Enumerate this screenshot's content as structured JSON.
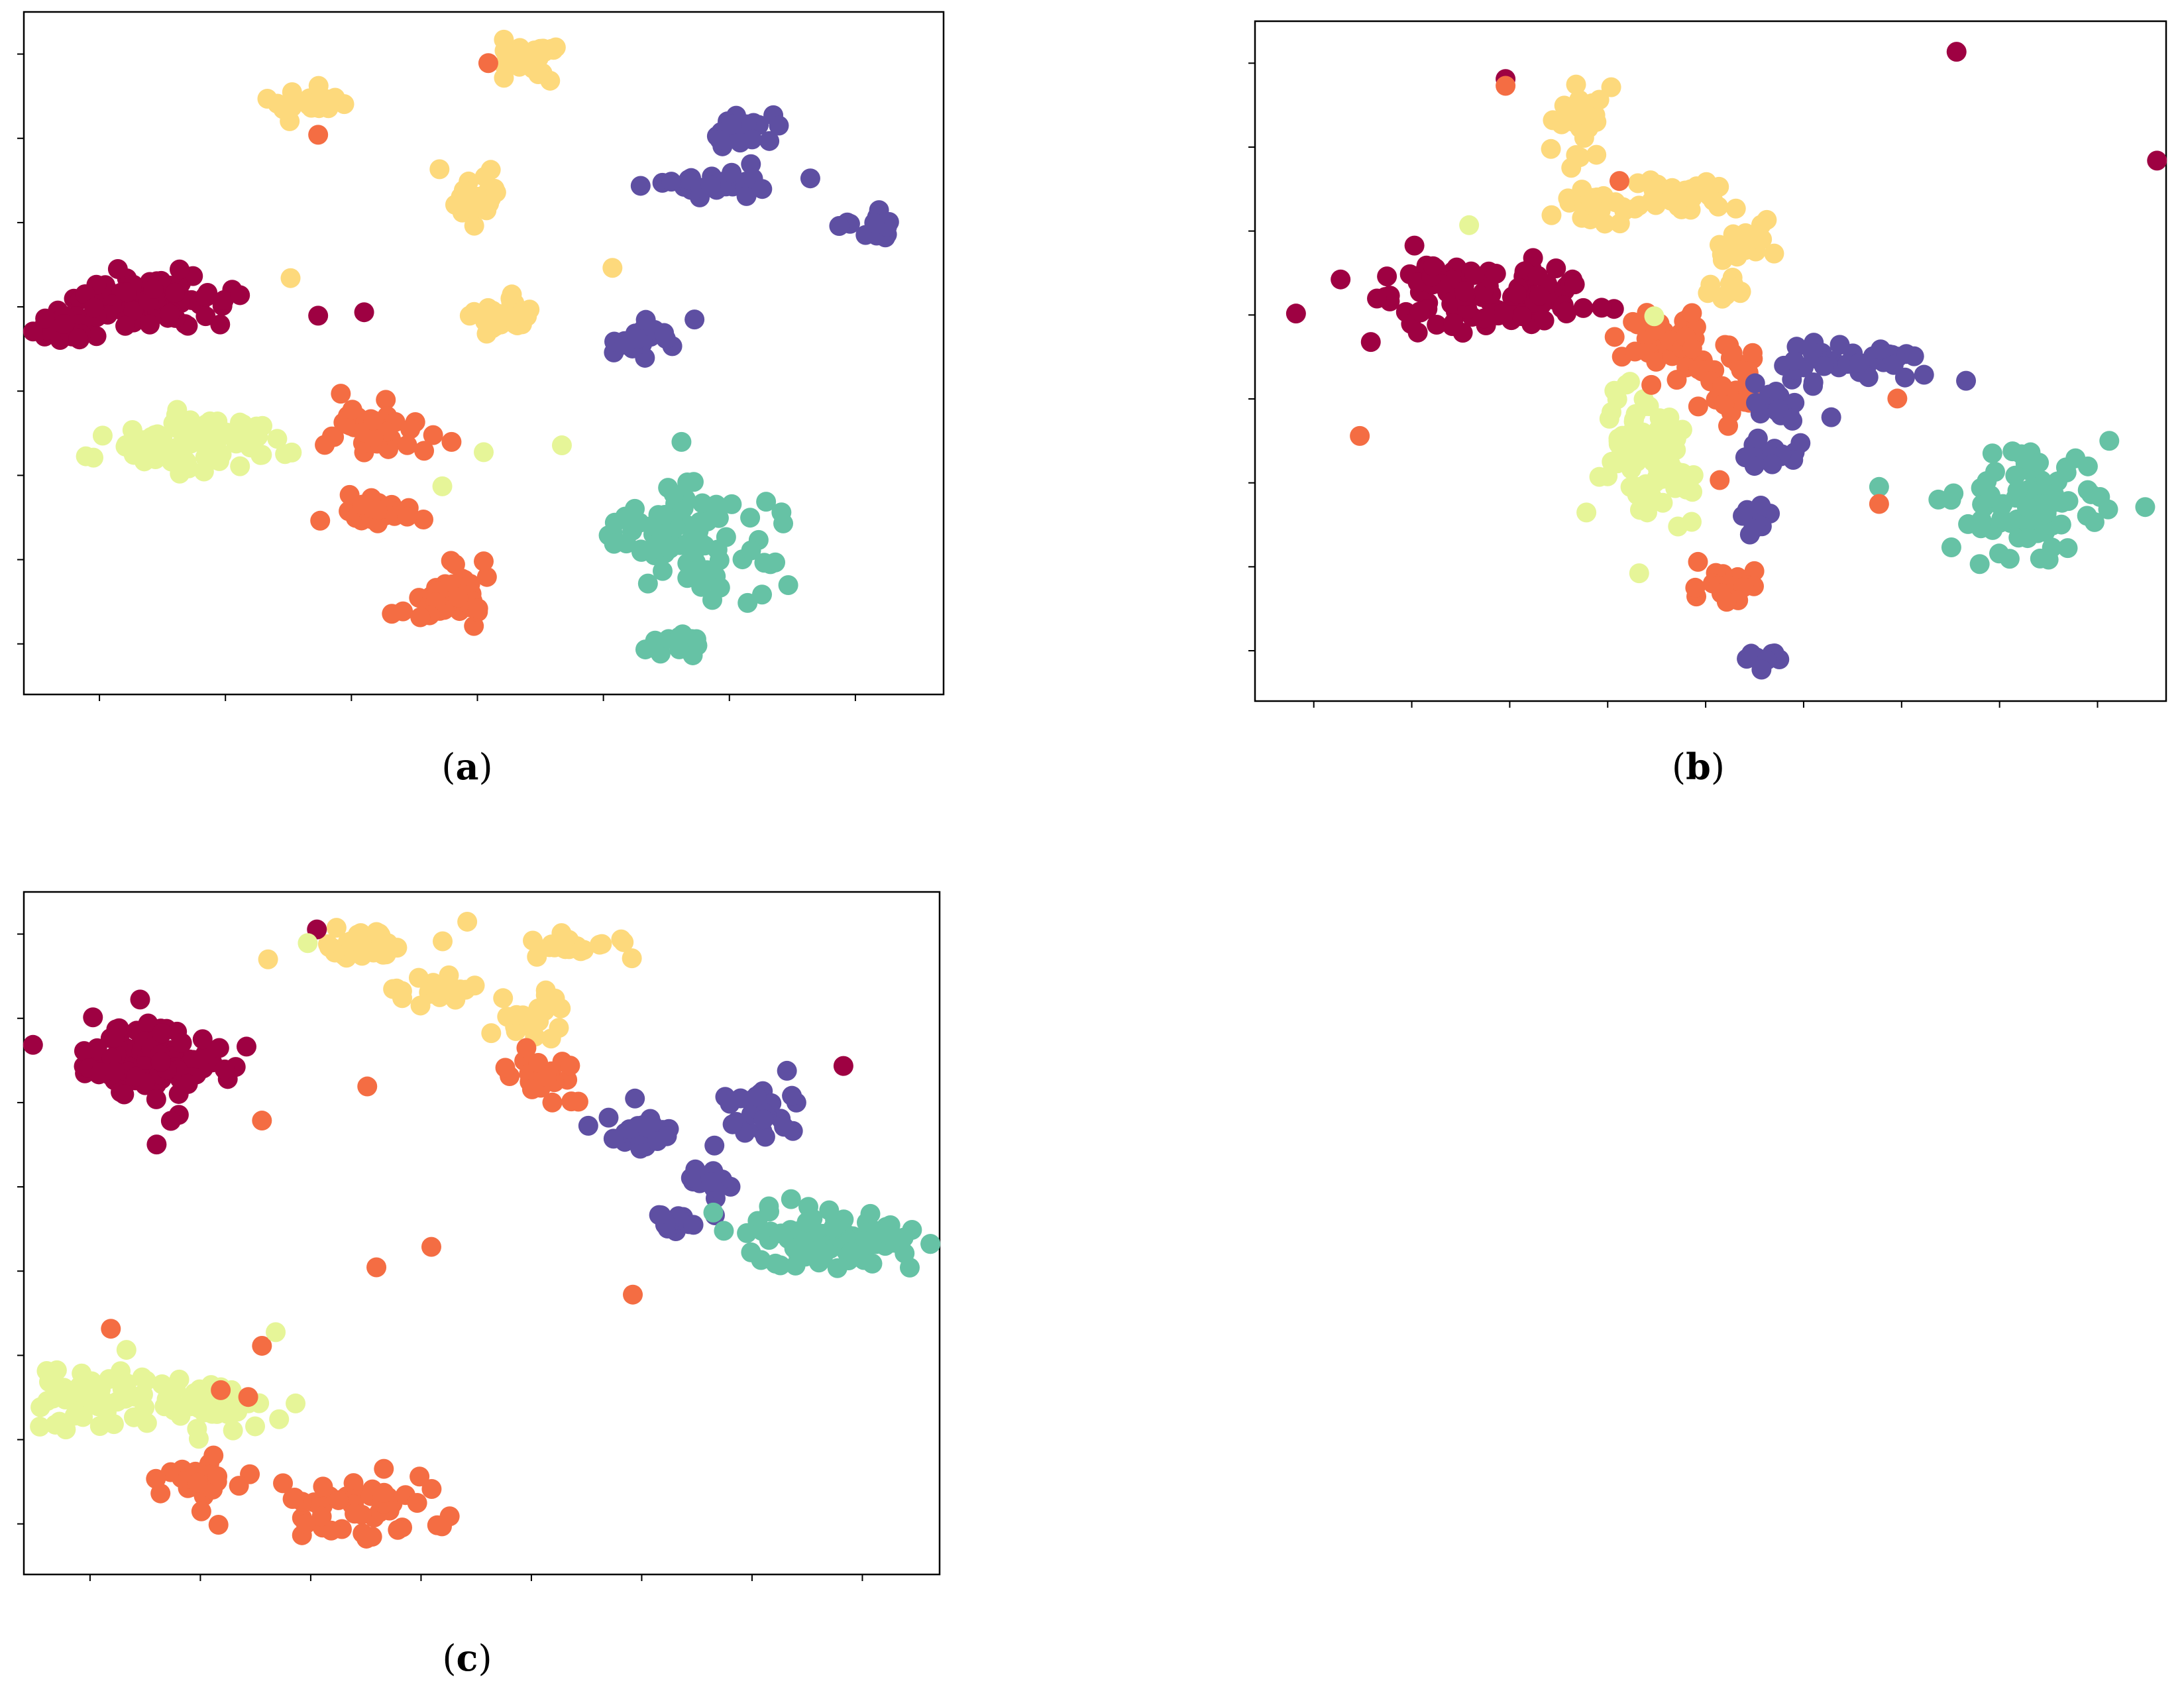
{
  "colors": {
    "red": "#9e0142",
    "orange": "#f46d43",
    "yellow": "#fdd97c",
    "lime": "#e6f598",
    "teal": "#66c2a5",
    "purple": "#5e4fa2"
  },
  "panels": [
    {
      "label": "a",
      "caption_open": "(",
      "caption_close": ")"
    },
    {
      "label": "b",
      "caption_open": "(",
      "caption_close": ")"
    },
    {
      "label": "c",
      "caption_open": "(",
      "caption_close": ")"
    }
  ],
  "chart_data": [
    {
      "type": "scatter",
      "title": "",
      "xlabel": "",
      "ylabel": "",
      "xlim": [
        0,
        100
      ],
      "ylim": [
        0,
        100
      ],
      "x_tick_count": 7,
      "y_tick_count": 8,
      "tick_labels_shown": false,
      "grid": false,
      "legend": "none",
      "clusters": [
        {
          "color": "red",
          "cx": 14,
          "cy": 42,
          "sx": 4,
          "sy": 2,
          "n": 90
        },
        {
          "color": "red",
          "cx": 5,
          "cy": 46,
          "sx": 2.5,
          "sy": 1,
          "n": 30
        },
        {
          "color": "lime",
          "cx": 19,
          "cy": 63,
          "sx": 5,
          "sy": 2,
          "n": 100
        },
        {
          "color": "yellow",
          "cx": 31,
          "cy": 13,
          "sx": 2.5,
          "sy": 1.2,
          "n": 25
        },
        {
          "color": "yellow",
          "cx": 55,
          "cy": 7,
          "sx": 1.5,
          "sy": 1.4,
          "n": 25
        },
        {
          "color": "yellow",
          "cx": 49,
          "cy": 27,
          "sx": 1.6,
          "sy": 2,
          "n": 25
        },
        {
          "color": "yellow",
          "cx": 52,
          "cy": 44,
          "sx": 1.6,
          "sy": 1.8,
          "n": 25
        },
        {
          "color": "orange",
          "cx": 37,
          "cy": 61,
          "sx": 2.5,
          "sy": 2,
          "n": 40
        },
        {
          "color": "orange",
          "cx": 37,
          "cy": 73,
          "sx": 2.5,
          "sy": 1,
          "n": 30
        },
        {
          "color": "orange",
          "cx": 46,
          "cy": 86,
          "sx": 3,
          "sy": 2.5,
          "n": 35
        },
        {
          "color": "purple",
          "cx": 78,
          "cy": 17,
          "sx": 1.6,
          "sy": 1.4,
          "n": 25
        },
        {
          "color": "purple",
          "cx": 75,
          "cy": 25,
          "sx": 4,
          "sy": 1,
          "n": 25
        },
        {
          "color": "purple",
          "cx": 93,
          "cy": 32,
          "sx": 1.5,
          "sy": 1.3,
          "n": 20
        },
        {
          "color": "purple",
          "cx": 67,
          "cy": 48,
          "sx": 1.6,
          "sy": 1.2,
          "n": 20
        },
        {
          "color": "teal",
          "cx": 71,
          "cy": 77,
          "sx": 3,
          "sy": 4,
          "n": 70
        },
        {
          "color": "teal",
          "cx": 72,
          "cy": 93,
          "sx": 1.5,
          "sy": 1.2,
          "n": 15
        },
        {
          "color": "teal",
          "cx": 81,
          "cy": 80,
          "sx": 3,
          "sy": 4,
          "n": 14
        }
      ],
      "outliers": [
        {
          "color": "orange",
          "x": 50.5,
          "y": 7.5
        },
        {
          "color": "orange",
          "x": 32,
          "y": 18
        },
        {
          "color": "yellow",
          "x": 29,
          "y": 39
        },
        {
          "color": "red",
          "x": 32,
          "y": 44.5
        },
        {
          "color": "red",
          "x": 37,
          "y": 44
        },
        {
          "color": "red",
          "x": 23.5,
          "y": 41.5
        },
        {
          "color": "yellow",
          "x": 64,
          "y": 37.5
        },
        {
          "color": "lime",
          "x": 50,
          "y": 64.5
        },
        {
          "color": "lime",
          "x": 58.5,
          "y": 63.5
        },
        {
          "color": "lime",
          "x": 45.5,
          "y": 69.5
        },
        {
          "color": "orange",
          "x": 50,
          "y": 80.5
        },
        {
          "color": "orange",
          "x": 46.5,
          "y": 63
        },
        {
          "color": "orange",
          "x": 44.5,
          "y": 62
        },
        {
          "color": "teal",
          "x": 71.5,
          "y": 63
        }
      ]
    },
    {
      "type": "scatter",
      "title": "",
      "xlabel": "",
      "ylabel": "",
      "xlim": [
        0,
        100
      ],
      "ylim": [
        0,
        100
      ],
      "x_tick_count": 9,
      "y_tick_count": 8,
      "tick_labels_shown": false,
      "grid": false,
      "legend": "none",
      "clusters": [
        {
          "color": "red",
          "cx": 26,
          "cy": 40,
          "sx": 6,
          "sy": 2.5,
          "n": 110
        },
        {
          "color": "yellow",
          "cx": 35.5,
          "cy": 15,
          "sx": 1.4,
          "sy": 2.5,
          "n": 25
        },
        {
          "color": "yellow",
          "cx": 37.5,
          "cy": 27.5,
          "sx": 2.5,
          "sy": 1.4,
          "n": 25
        },
        {
          "color": "yellow",
          "cx": 46,
          "cy": 25.5,
          "sx": 2.5,
          "sy": 1.4,
          "n": 25
        },
        {
          "color": "yellow",
          "cx": 53.5,
          "cy": 32.5,
          "sx": 1.5,
          "sy": 1.8,
          "n": 20
        },
        {
          "color": "yellow",
          "cx": 52.5,
          "cy": 39,
          "sx": 1.3,
          "sy": 0.8,
          "n": 10
        },
        {
          "color": "orange",
          "cx": 44.5,
          "cy": 47,
          "sx": 3.5,
          "sy": 2.2,
          "n": 45
        },
        {
          "color": "orange",
          "cx": 51.5,
          "cy": 52.5,
          "sx": 1.6,
          "sy": 3,
          "n": 30
        },
        {
          "color": "orange",
          "cx": 52,
          "cy": 82.5,
          "sx": 1.8,
          "sy": 1.8,
          "n": 20
        },
        {
          "color": "lime",
          "cx": 43,
          "cy": 64,
          "sx": 2.6,
          "sy": 6,
          "n": 90
        },
        {
          "color": "purple",
          "cx": 66,
          "cy": 50.5,
          "sx": 5,
          "sy": 1.6,
          "n": 35
        },
        {
          "color": "purple",
          "cx": 58.5,
          "cy": 57,
          "sx": 2,
          "sy": 1.2,
          "n": 15
        },
        {
          "color": "purple",
          "cx": 56,
          "cy": 63,
          "sx": 2.2,
          "sy": 1.4,
          "n": 15
        },
        {
          "color": "purple",
          "cx": 55,
          "cy": 73,
          "sx": 1,
          "sy": 1.4,
          "n": 10
        },
        {
          "color": "purple",
          "cx": 55,
          "cy": 94,
          "sx": 1.2,
          "sy": 0.9,
          "n": 10
        },
        {
          "color": "teal",
          "cx": 85,
          "cy": 71,
          "sx": 4,
          "sy": 3.5,
          "n": 90
        }
      ],
      "outliers": [
        {
          "color": "red",
          "x": 4.5,
          "y": 43
        },
        {
          "color": "red",
          "x": 17.5,
          "y": 33
        },
        {
          "color": "red",
          "x": 27.5,
          "y": 8.5
        },
        {
          "color": "orange",
          "x": 27.5,
          "y": 9.5
        },
        {
          "color": "red",
          "x": 77,
          "y": 4.5
        },
        {
          "color": "red",
          "x": 99,
          "y": 20.5
        },
        {
          "color": "lime",
          "x": 23.5,
          "y": 30
        },
        {
          "color": "orange",
          "x": 40,
          "y": 23.5
        },
        {
          "color": "orange",
          "x": 11.5,
          "y": 61
        },
        {
          "color": "orange",
          "x": 70.5,
          "y": 55.5
        },
        {
          "color": "teal",
          "x": 68.5,
          "y": 68.5
        },
        {
          "color": "orange",
          "x": 68.5,
          "y": 71
        },
        {
          "color": "orange",
          "x": 43.5,
          "y": 53.5
        },
        {
          "color": "orange",
          "x": 51,
          "y": 67.5
        }
      ]
    },
    {
      "type": "scatter",
      "title": "",
      "xlabel": "",
      "ylabel": "",
      "xlim": [
        0,
        100
      ],
      "ylim": [
        0,
        100
      ],
      "x_tick_count": 8,
      "y_tick_count": 8,
      "tick_labels_shown": false,
      "grid": false,
      "legend": "none",
      "clusters": [
        {
          "color": "red",
          "cx": 14,
          "cy": 25,
          "sx": 4,
          "sy": 3,
          "n": 120
        },
        {
          "color": "yellow",
          "cx": 37,
          "cy": 7,
          "sx": 4,
          "sy": 1.5,
          "n": 30
        },
        {
          "color": "yellow",
          "cx": 44.5,
          "cy": 14.5,
          "sx": 2.5,
          "sy": 1,
          "n": 20
        },
        {
          "color": "yellow",
          "cx": 61,
          "cy": 8,
          "sx": 2.5,
          "sy": 1,
          "n": 20
        },
        {
          "color": "yellow",
          "cx": 55,
          "cy": 18,
          "sx": 2.5,
          "sy": 1.8,
          "n": 20
        },
        {
          "color": "orange",
          "cx": 56.5,
          "cy": 27,
          "sx": 2,
          "sy": 2,
          "n": 25
        },
        {
          "color": "orange",
          "cx": 19,
          "cy": 86,
          "sx": 2.5,
          "sy": 1.5,
          "n": 30
        },
        {
          "color": "orange",
          "cx": 36,
          "cy": 90,
          "sx": 5,
          "sy": 2.5,
          "n": 50
        },
        {
          "color": "lime",
          "cx": 8,
          "cy": 74,
          "sx": 3,
          "sy": 2.5,
          "n": 50
        },
        {
          "color": "lime",
          "cx": 20,
          "cy": 75,
          "sx": 4,
          "sy": 2,
          "n": 50
        },
        {
          "color": "purple",
          "cx": 67,
          "cy": 35,
          "sx": 2.5,
          "sy": 1.8,
          "n": 25
        },
        {
          "color": "purple",
          "cx": 80,
          "cy": 33,
          "sx": 3,
          "sy": 2.5,
          "n": 30
        },
        {
          "color": "purple",
          "cx": 74,
          "cy": 42,
          "sx": 1.2,
          "sy": 1.2,
          "n": 10
        },
        {
          "color": "purple",
          "cx": 71,
          "cy": 48,
          "sx": 1.6,
          "sy": 1.2,
          "n": 12
        },
        {
          "color": "teal",
          "cx": 88,
          "cy": 51,
          "sx": 5,
          "sy": 2.2,
          "n": 100
        }
      ],
      "outliers": [
        {
          "color": "red",
          "x": 32,
          "y": 5.5
        },
        {
          "color": "lime",
          "x": 31,
          "y": 7.5
        },
        {
          "color": "red",
          "x": 14.5,
          "y": 37
        },
        {
          "color": "orange",
          "x": 26,
          "y": 33.5
        },
        {
          "color": "orange",
          "x": 37.5,
          "y": 28.5
        },
        {
          "color": "red",
          "x": 89.5,
          "y": 25.5
        },
        {
          "color": "orange",
          "x": 38.5,
          "y": 55
        },
        {
          "color": "orange",
          "x": 44.5,
          "y": 52
        },
        {
          "color": "orange",
          "x": 66.5,
          "y": 59
        },
        {
          "color": "orange",
          "x": 9.5,
          "y": 64
        },
        {
          "color": "orange",
          "x": 26,
          "y": 66.5
        },
        {
          "color": "lime",
          "x": 27.5,
          "y": 64.5
        },
        {
          "color": "orange",
          "x": 21.5,
          "y": 73
        },
        {
          "color": "orange",
          "x": 24.5,
          "y": 74
        }
      ]
    }
  ]
}
